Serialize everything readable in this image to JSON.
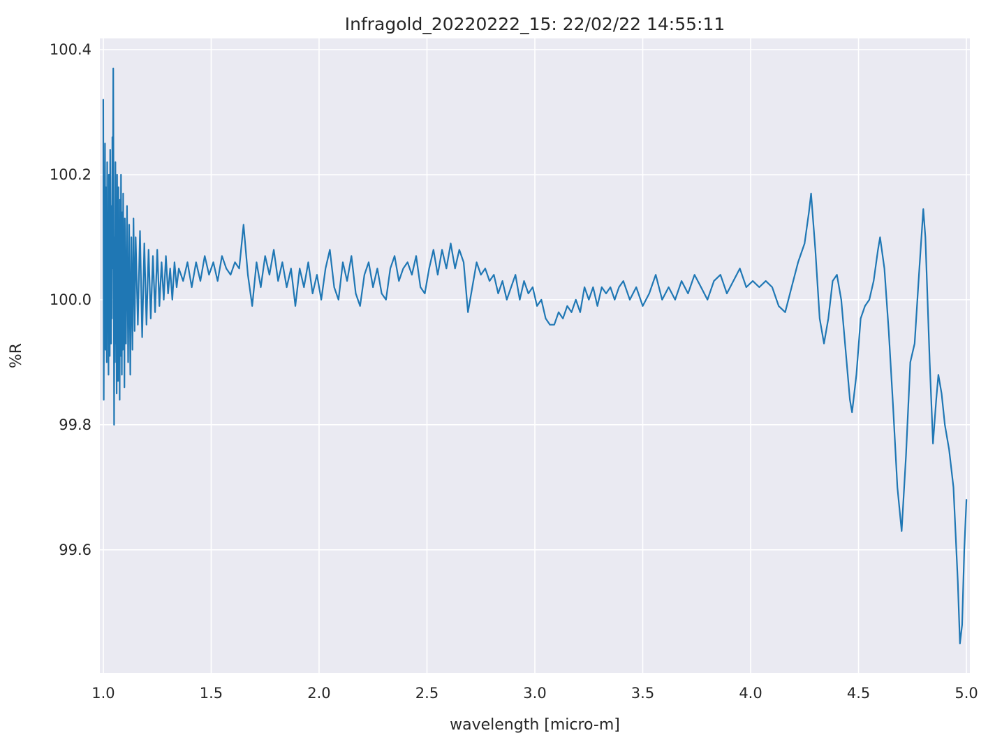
{
  "title": "Infragold_20220222_15:  22/02/22 14:55:11",
  "chart_data": {
    "type": "line",
    "title": "Infragold_20220222_15:  22/02/22 14:55:11",
    "xlabel": "wavelength [micro-m]",
    "ylabel": "%R",
    "xlim": [
      0.984,
      5.016
    ],
    "ylim": [
      99.403,
      100.418
    ],
    "xticks": [
      1.0,
      1.5,
      2.0,
      2.5,
      3.0,
      3.5,
      4.0,
      4.5,
      5.0
    ],
    "xtick_labels": [
      "1.0",
      "1.5",
      "2.0",
      "2.5",
      "3.0",
      "3.5",
      "4.0",
      "4.5",
      "5.0"
    ],
    "yticks": [
      99.6,
      99.8,
      100.0,
      100.2,
      100.4
    ],
    "ytick_labels": [
      "99.6",
      "99.8",
      "100.0",
      "100.2",
      "100.4"
    ],
    "grid": true,
    "legend": false,
    "style": "seaborn-darkgrid",
    "line_color": "#1f77b4",
    "plot_background_color": "#eaeaf2",
    "grid_color": "#ffffff",
    "series": [
      {
        "name": "%R",
        "points": [
          [
            1.0,
            100.32
          ],
          [
            1.002,
            99.84
          ],
          [
            1.004,
            100.1
          ],
          [
            1.006,
            99.97
          ],
          [
            1.008,
            100.25
          ],
          [
            1.01,
            99.92
          ],
          [
            1.012,
            100.18
          ],
          [
            1.014,
            100.02
          ],
          [
            1.016,
            99.9
          ],
          [
            1.018,
            100.22
          ],
          [
            1.02,
            99.95
          ],
          [
            1.022,
            100.12
          ],
          [
            1.024,
            99.88
          ],
          [
            1.026,
            100.2
          ],
          [
            1.028,
            100.0
          ],
          [
            1.03,
            99.91
          ],
          [
            1.032,
            100.24
          ],
          [
            1.034,
            100.04
          ],
          [
            1.036,
            99.93
          ],
          [
            1.038,
            100.15
          ],
          [
            1.04,
            99.97
          ],
          [
            1.042,
            100.26
          ],
          [
            1.044,
            100.05
          ],
          [
            1.046,
            100.37
          ],
          [
            1.048,
            100.08
          ],
          [
            1.05,
            99.8
          ],
          [
            1.052,
            100.1
          ],
          [
            1.054,
            99.9
          ],
          [
            1.056,
            100.22
          ],
          [
            1.058,
            99.93
          ],
          [
            1.06,
            100.16
          ],
          [
            1.062,
            99.85
          ],
          [
            1.064,
            100.2
          ],
          [
            1.066,
            100.0
          ],
          [
            1.068,
            99.87
          ],
          [
            1.07,
            100.18
          ],
          [
            1.072,
            99.94
          ],
          [
            1.074,
            100.12
          ],
          [
            1.076,
            99.84
          ],
          [
            1.078,
            100.16
          ],
          [
            1.08,
            99.91
          ],
          [
            1.082,
            100.2
          ],
          [
            1.084,
            100.02
          ],
          [
            1.086,
            99.88
          ],
          [
            1.088,
            100.14
          ],
          [
            1.09,
            99.92
          ],
          [
            1.092,
            100.17
          ],
          [
            1.094,
            99.95
          ],
          [
            1.096,
            100.1
          ],
          [
            1.098,
            99.86
          ],
          [
            1.1,
            100.13
          ],
          [
            1.105,
            99.93
          ],
          [
            1.11,
            100.15
          ],
          [
            1.115,
            99.9
          ],
          [
            1.12,
            100.12
          ],
          [
            1.125,
            99.88
          ],
          [
            1.13,
            100.1
          ],
          [
            1.135,
            99.92
          ],
          [
            1.14,
            100.13
          ],
          [
            1.145,
            99.95
          ],
          [
            1.15,
            100.1
          ],
          [
            1.16,
            99.96
          ],
          [
            1.17,
            100.11
          ],
          [
            1.18,
            99.94
          ],
          [
            1.19,
            100.09
          ],
          [
            1.2,
            99.96
          ],
          [
            1.21,
            100.08
          ],
          [
            1.22,
            99.97
          ],
          [
            1.23,
            100.07
          ],
          [
            1.24,
            99.98
          ],
          [
            1.25,
            100.08
          ],
          [
            1.26,
            99.99
          ],
          [
            1.27,
            100.06
          ],
          [
            1.28,
            100.0
          ],
          [
            1.29,
            100.07
          ],
          [
            1.3,
            100.01
          ],
          [
            1.31,
            100.05
          ],
          [
            1.32,
            100.0
          ],
          [
            1.33,
            100.06
          ],
          [
            1.34,
            100.02
          ],
          [
            1.35,
            100.05
          ],
          [
            1.37,
            100.03
          ],
          [
            1.39,
            100.06
          ],
          [
            1.41,
            100.02
          ],
          [
            1.43,
            100.06
          ],
          [
            1.45,
            100.03
          ],
          [
            1.47,
            100.07
          ],
          [
            1.49,
            100.04
          ],
          [
            1.51,
            100.06
          ],
          [
            1.53,
            100.03
          ],
          [
            1.55,
            100.07
          ],
          [
            1.57,
            100.05
          ],
          [
            1.59,
            100.04
          ],
          [
            1.61,
            100.06
          ],
          [
            1.63,
            100.05
          ],
          [
            1.65,
            100.12
          ],
          [
            1.67,
            100.04
          ],
          [
            1.69,
            99.99
          ],
          [
            1.71,
            100.06
          ],
          [
            1.73,
            100.02
          ],
          [
            1.75,
            100.07
          ],
          [
            1.77,
            100.04
          ],
          [
            1.79,
            100.08
          ],
          [
            1.81,
            100.03
          ],
          [
            1.83,
            100.06
          ],
          [
            1.85,
            100.02
          ],
          [
            1.87,
            100.05
          ],
          [
            1.89,
            99.99
          ],
          [
            1.91,
            100.05
          ],
          [
            1.93,
            100.02
          ],
          [
            1.95,
            100.06
          ],
          [
            1.97,
            100.01
          ],
          [
            1.99,
            100.04
          ],
          [
            2.01,
            100.0
          ],
          [
            2.03,
            100.05
          ],
          [
            2.05,
            100.08
          ],
          [
            2.07,
            100.02
          ],
          [
            2.09,
            100.0
          ],
          [
            2.11,
            100.06
          ],
          [
            2.13,
            100.03
          ],
          [
            2.15,
            100.07
          ],
          [
            2.17,
            100.01
          ],
          [
            2.19,
            99.99
          ],
          [
            2.21,
            100.04
          ],
          [
            2.23,
            100.06
          ],
          [
            2.25,
            100.02
          ],
          [
            2.27,
            100.05
          ],
          [
            2.29,
            100.01
          ],
          [
            2.31,
            100.0
          ],
          [
            2.33,
            100.05
          ],
          [
            2.35,
            100.07
          ],
          [
            2.37,
            100.03
          ],
          [
            2.39,
            100.05
          ],
          [
            2.41,
            100.06
          ],
          [
            2.43,
            100.04
          ],
          [
            2.45,
            100.07
          ],
          [
            2.47,
            100.02
          ],
          [
            2.49,
            100.01
          ],
          [
            2.51,
            100.05
          ],
          [
            2.53,
            100.08
          ],
          [
            2.55,
            100.04
          ],
          [
            2.57,
            100.08
          ],
          [
            2.59,
            100.05
          ],
          [
            2.61,
            100.09
          ],
          [
            2.63,
            100.05
          ],
          [
            2.65,
            100.08
          ],
          [
            2.67,
            100.06
          ],
          [
            2.69,
            99.98
          ],
          [
            2.71,
            100.02
          ],
          [
            2.73,
            100.06
          ],
          [
            2.75,
            100.04
          ],
          [
            2.77,
            100.05
          ],
          [
            2.79,
            100.03
          ],
          [
            2.81,
            100.04
          ],
          [
            2.83,
            100.01
          ],
          [
            2.85,
            100.03
          ],
          [
            2.87,
            100.0
          ],
          [
            2.89,
            100.02
          ],
          [
            2.91,
            100.04
          ],
          [
            2.93,
            100.0
          ],
          [
            2.95,
            100.03
          ],
          [
            2.97,
            100.01
          ],
          [
            2.99,
            100.02
          ],
          [
            3.01,
            99.99
          ],
          [
            3.03,
            100.0
          ],
          [
            3.05,
            99.97
          ],
          [
            3.07,
            99.96
          ],
          [
            3.09,
            99.96
          ],
          [
            3.11,
            99.98
          ],
          [
            3.13,
            99.97
          ],
          [
            3.15,
            99.99
          ],
          [
            3.17,
            99.98
          ],
          [
            3.19,
            100.0
          ],
          [
            3.21,
            99.98
          ],
          [
            3.23,
            100.02
          ],
          [
            3.25,
            100.0
          ],
          [
            3.27,
            100.02
          ],
          [
            3.29,
            99.99
          ],
          [
            3.31,
            100.02
          ],
          [
            3.33,
            100.01
          ],
          [
            3.35,
            100.02
          ],
          [
            3.37,
            100.0
          ],
          [
            3.39,
            100.02
          ],
          [
            3.41,
            100.03
          ],
          [
            3.44,
            100.0
          ],
          [
            3.47,
            100.02
          ],
          [
            3.5,
            99.99
          ],
          [
            3.53,
            100.01
          ],
          [
            3.56,
            100.04
          ],
          [
            3.59,
            100.0
          ],
          [
            3.62,
            100.02
          ],
          [
            3.65,
            100.0
          ],
          [
            3.68,
            100.03
          ],
          [
            3.71,
            100.01
          ],
          [
            3.74,
            100.04
          ],
          [
            3.77,
            100.02
          ],
          [
            3.8,
            100.0
          ],
          [
            3.83,
            100.03
          ],
          [
            3.86,
            100.04
          ],
          [
            3.89,
            100.01
          ],
          [
            3.92,
            100.03
          ],
          [
            3.95,
            100.05
          ],
          [
            3.98,
            100.02
          ],
          [
            4.01,
            100.03
          ],
          [
            4.04,
            100.02
          ],
          [
            4.07,
            100.03
          ],
          [
            4.1,
            100.02
          ],
          [
            4.13,
            99.99
          ],
          [
            4.16,
            99.98
          ],
          [
            4.19,
            100.02
          ],
          [
            4.22,
            100.06
          ],
          [
            4.25,
            100.09
          ],
          [
            4.27,
            100.14
          ],
          [
            4.28,
            100.17
          ],
          [
            4.3,
            100.08
          ],
          [
            4.32,
            99.97
          ],
          [
            4.34,
            99.93
          ],
          [
            4.36,
            99.97
          ],
          [
            4.38,
            100.03
          ],
          [
            4.4,
            100.04
          ],
          [
            4.42,
            100.0
          ],
          [
            4.44,
            99.92
          ],
          [
            4.46,
            99.84
          ],
          [
            4.47,
            99.82
          ],
          [
            4.49,
            99.88
          ],
          [
            4.51,
            99.97
          ],
          [
            4.53,
            99.99
          ],
          [
            4.55,
            100.0
          ],
          [
            4.57,
            100.03
          ],
          [
            4.59,
            100.08
          ],
          [
            4.6,
            100.1
          ],
          [
            4.62,
            100.05
          ],
          [
            4.64,
            99.95
          ],
          [
            4.66,
            99.83
          ],
          [
            4.68,
            99.7
          ],
          [
            4.7,
            99.63
          ],
          [
            4.72,
            99.75
          ],
          [
            4.74,
            99.9
          ],
          [
            4.76,
            99.93
          ],
          [
            4.78,
            100.04
          ],
          [
            4.8,
            100.145
          ],
          [
            4.81,
            100.1
          ],
          [
            4.83,
            99.9
          ],
          [
            4.845,
            99.77
          ],
          [
            4.86,
            99.84
          ],
          [
            4.87,
            99.88
          ],
          [
            4.885,
            99.85
          ],
          [
            4.9,
            99.8
          ],
          [
            4.92,
            99.76
          ],
          [
            4.94,
            99.7
          ],
          [
            4.96,
            99.55
          ],
          [
            4.97,
            99.45
          ],
          [
            4.98,
            99.48
          ],
          [
            4.99,
            99.6
          ],
          [
            5.0,
            99.68
          ]
        ]
      }
    ]
  }
}
